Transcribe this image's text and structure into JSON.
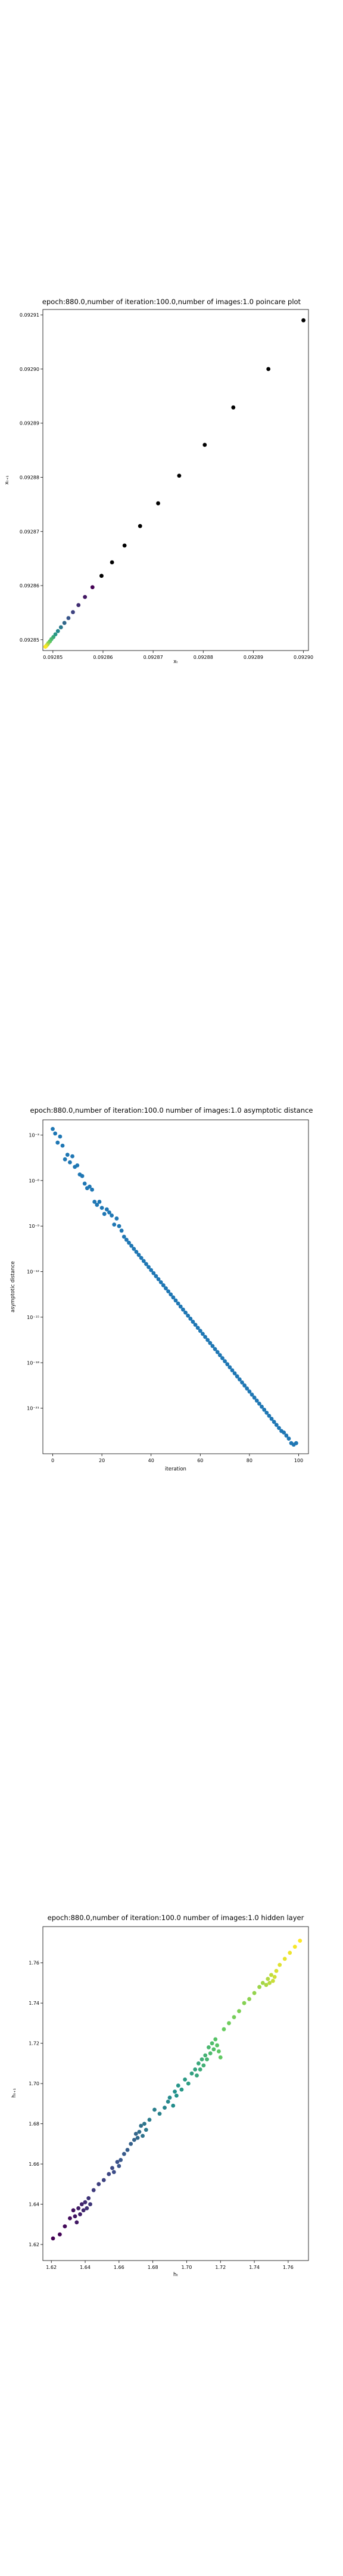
{
  "chart_data": [
    {
      "type": "scatter",
      "title": "epoch:880.0,number of iteration:100.0,number of images:1.0 poincare plot",
      "xlabel": "xₜ",
      "ylabel": "xₜ₊₁",
      "xlim": [
        0.092848,
        0.092901
      ],
      "ylim": [
        0.092848,
        0.092911
      ],
      "xticks": [
        0.09285,
        0.09286,
        0.09287,
        0.09288,
        0.09289,
        0.0929
      ],
      "xtick_labels": [
        "0.09285",
        "0.09286",
        "0.09287",
        "0.09288",
        "0.09289",
        "0.09290"
      ],
      "yticks": [
        0.09285,
        0.09286,
        0.09287,
        0.09288,
        0.09289,
        0.0929,
        0.09291
      ],
      "ytick_labels": [
        "0.09285",
        "0.09286",
        "0.09287",
        "0.09288",
        "0.09289",
        "0.09290",
        "0.09291"
      ],
      "colormap": [
        "#440154",
        "#3b528b",
        "#21918c",
        "#5ec962",
        "#fde725"
      ],
      "x": [
        0.0929,
        0.092893,
        0.092886,
        0.0928803,
        0.0928752,
        0.092871,
        0.0928674,
        0.0928643,
        0.0928618,
        0.0928597,
        0.0928579,
        0.0928564,
        0.0928551,
        0.092854,
        0.0928531,
        0.0928523,
        0.0928516,
        0.092851,
        0.0928505,
        0.0928501,
        0.0928497,
        0.0928494,
        0.0928491,
        0.0928489,
        0.0928487,
        0.0928485
      ],
      "y": [
        0.092909,
        0.0929,
        0.0928929,
        0.092886,
        0.0928803,
        0.0928752,
        0.092871,
        0.0928674,
        0.0928643,
        0.0928618,
        0.0928597,
        0.0928579,
        0.0928564,
        0.0928551,
        0.092854,
        0.0928531,
        0.0928523,
        0.0928516,
        0.092851,
        0.0928505,
        0.0928501,
        0.0928497,
        0.0928494,
        0.0928491,
        0.0928489,
        0.0928487
      ],
      "marker_color": "#000000"
    },
    {
      "type": "scatter",
      "title": "epoch:880.0,number of iteration:100.0  number of images:1.0 asymptotic distance",
      "xlabel": "iteration",
      "ylabel": "asymptotic distance",
      "xscale": "linear",
      "yscale": "log",
      "xlim": [
        -4,
        104
      ],
      "ylim": [
        1e-24,
        0.01
      ],
      "xticks": [
        0,
        20,
        40,
        60,
        80,
        100
      ],
      "xtick_labels": [
        "0",
        "20",
        "40",
        "60",
        "80",
        "100"
      ],
      "yticks": [
        0.001,
        1e-06,
        1e-09,
        1e-12,
        1e-15,
        1e-18,
        1e-21
      ],
      "ytick_labels": [
        "10⁻³",
        "10⁻⁶",
        "10⁻⁹",
        "10⁻¹²",
        "10⁻¹⁵",
        "10⁻¹⁸",
        "10⁻²¹"
      ],
      "color": "#1f77b4",
      "x": [
        0,
        1,
        2,
        3,
        4,
        5,
        6,
        7,
        8,
        9,
        10,
        11,
        12,
        13,
        14,
        15,
        16,
        17,
        18,
        19,
        20,
        21,
        22,
        23,
        24,
        25,
        26,
        27,
        28,
        29,
        30,
        31,
        32,
        33,
        34,
        35,
        36,
        37,
        38,
        39,
        40,
        41,
        42,
        43,
        44,
        45,
        46,
        47,
        48,
        49,
        50,
        51,
        52,
        53,
        54,
        55,
        56,
        57,
        58,
        59,
        60,
        61,
        62,
        63,
        64,
        65,
        66,
        67,
        68,
        69,
        70,
        71,
        72,
        73,
        74,
        75,
        76,
        77,
        78,
        79,
        80,
        81,
        82,
        83,
        84,
        85,
        86,
        87,
        88,
        89,
        90,
        91,
        92,
        93,
        94,
        95,
        96,
        97,
        98,
        99
      ],
      "y_log10": [
        -2.6,
        -2.9,
        -3.5,
        -3.1,
        -3.7,
        -4.6,
        -4.3,
        -4.8,
        -4.4,
        -5.1,
        -5.0,
        -5.6,
        -5.7,
        -6.2,
        -6.5,
        -6.4,
        -6.6,
        -7.4,
        -7.6,
        -7.4,
        -7.8,
        -8.2,
        -7.9,
        -8.1,
        -8.3,
        -8.9,
        -8.5,
        -9.0,
        -9.3,
        -9.7,
        -9.9,
        -10.1,
        -10.3,
        -10.5,
        -10.7,
        -10.9,
        -11.1,
        -11.3,
        -11.5,
        -11.7,
        -11.9,
        -12.1,
        -12.3,
        -12.5,
        -12.7,
        -12.9,
        -13.1,
        -13.3,
        -13.5,
        -13.7,
        -13.9,
        -14.1,
        -14.3,
        -14.5,
        -14.7,
        -14.9,
        -15.1,
        -15.3,
        -15.5,
        -15.7,
        -15.9,
        -16.1,
        -16.3,
        -16.5,
        -16.7,
        -16.9,
        -17.1,
        -17.3,
        -17.5,
        -17.7,
        -17.9,
        -18.1,
        -18.3,
        -18.5,
        -18.7,
        -18.9,
        -19.1,
        -19.3,
        -19.5,
        -19.7,
        -19.9,
        -20.1,
        -20.3,
        -20.5,
        -20.7,
        -20.9,
        -21.1,
        -21.3,
        -21.5,
        -21.7,
        -21.9,
        -22.1,
        -22.3,
        -22.5,
        -22.6,
        -22.8,
        -23.0,
        -23.3,
        -23.4,
        -23.3
      ]
    },
    {
      "type": "scatter",
      "title": "epoch:880.0,number of iteration:100.0  number of images:1.0 hidden layer",
      "xlabel": "hₜ",
      "ylabel": "hₜ₊₁",
      "xlim": [
        1.615,
        1.772
      ],
      "ylim": [
        1.612,
        1.778
      ],
      "xticks": [
        1.62,
        1.64,
        1.66,
        1.68,
        1.7,
        1.72,
        1.74,
        1.76
      ],
      "xtick_labels": [
        "1.62",
        "1.64",
        "1.66",
        "1.68",
        "1.70",
        "1.72",
        "1.74",
        "1.76"
      ],
      "yticks": [
        1.62,
        1.64,
        1.66,
        1.68,
        1.7,
        1.72,
        1.74,
        1.76
      ],
      "ytick_labels": [
        "1.62",
        "1.64",
        "1.66",
        "1.68",
        "1.70",
        "1.72",
        "1.74",
        "1.76"
      ],
      "colormap": [
        "#440154",
        "#3b528b",
        "#21918c",
        "#5ec962",
        "#fde725"
      ],
      "x": [
        1.621,
        1.625,
        1.628,
        1.631,
        1.633,
        1.634,
        1.635,
        1.636,
        1.637,
        1.638,
        1.639,
        1.64,
        1.641,
        1.642,
        1.643,
        1.645,
        1.648,
        1.651,
        1.654,
        1.656,
        1.657,
        1.659,
        1.66,
        1.661,
        1.663,
        1.665,
        1.667,
        1.669,
        1.67,
        1.671,
        1.672,
        1.673,
        1.674,
        1.675,
        1.676,
        1.678,
        1.681,
        1.684,
        1.687,
        1.689,
        1.69,
        1.692,
        1.693,
        1.694,
        1.695,
        1.697,
        1.699,
        1.701,
        1.703,
        1.705,
        1.706,
        1.707,
        1.708,
        1.709,
        1.71,
        1.711,
        1.712,
        1.713,
        1.714,
        1.715,
        1.716,
        1.717,
        1.718,
        1.719,
        1.72,
        1.722,
        1.725,
        1.728,
        1.731,
        1.734,
        1.737,
        1.74,
        1.743,
        1.745,
        1.747,
        1.748,
        1.749,
        1.75,
        1.751,
        1.752,
        1.753,
        1.755,
        1.758,
        1.761,
        1.764,
        1.767
      ],
      "y": [
        1.623,
        1.625,
        1.629,
        1.633,
        1.637,
        1.634,
        1.631,
        1.638,
        1.635,
        1.64,
        1.637,
        1.641,
        1.638,
        1.643,
        1.64,
        1.647,
        1.65,
        1.652,
        1.655,
        1.658,
        1.656,
        1.661,
        1.659,
        1.662,
        1.665,
        1.667,
        1.67,
        1.672,
        1.675,
        1.673,
        1.676,
        1.679,
        1.674,
        1.68,
        1.677,
        1.682,
        1.687,
        1.685,
        1.688,
        1.691,
        1.693,
        1.689,
        1.696,
        1.694,
        1.699,
        1.697,
        1.702,
        1.7,
        1.705,
        1.707,
        1.704,
        1.71,
        1.707,
        1.712,
        1.709,
        1.714,
        1.712,
        1.718,
        1.715,
        1.72,
        1.717,
        1.722,
        1.719,
        1.716,
        1.713,
        1.727,
        1.73,
        1.733,
        1.736,
        1.74,
        1.742,
        1.745,
        1.748,
        1.75,
        1.749,
        1.752,
        1.75,
        1.754,
        1.751,
        1.753,
        1.756,
        1.759,
        1.762,
        1.765,
        1.768,
        1.771
      ]
    }
  ]
}
